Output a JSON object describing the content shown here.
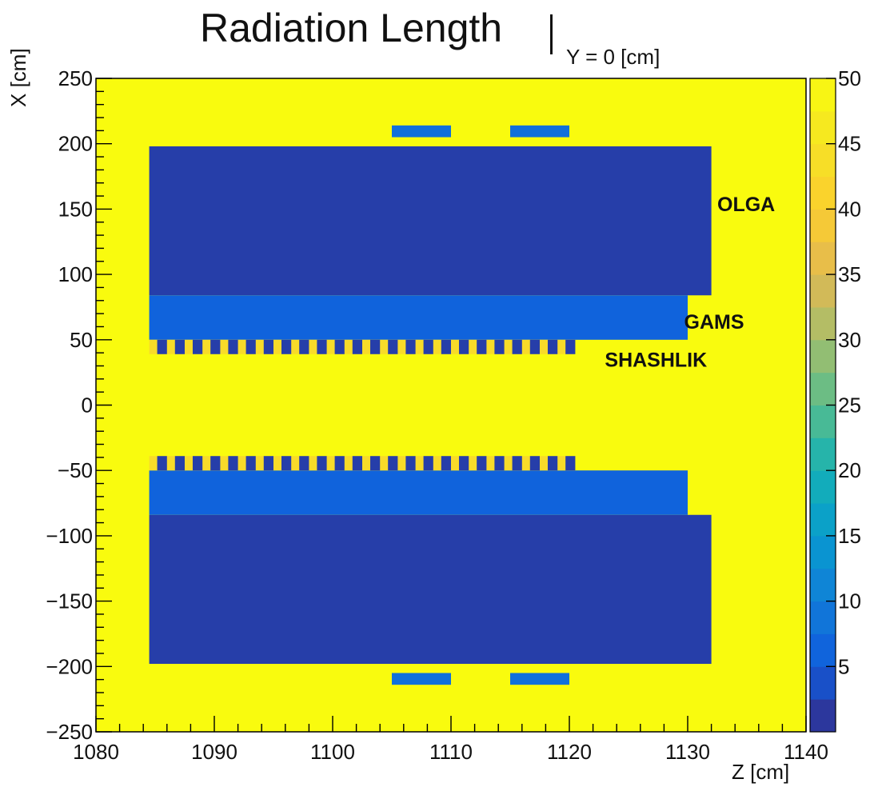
{
  "chart_data": {
    "type": "heatmap",
    "title": "Radiation Length",
    "title_subscript": "Y = 0 [cm]",
    "xlabel": "Z [cm]",
    "ylabel": "X [cm]",
    "xlim": [
      1080,
      1140
    ],
    "ylim": [
      -250,
      250
    ],
    "x_ticks": [
      1080,
      1090,
      1100,
      1110,
      1120,
      1130,
      1140
    ],
    "y_ticks": [
      250,
      200,
      150,
      100,
      50,
      0,
      -50,
      -100,
      -150,
      -200,
      -250
    ],
    "y_tick_labels": [
      "250",
      "200",
      "150",
      "100",
      "50",
      "0",
      "−50",
      "−100",
      "−150",
      "−200",
      "−250"
    ],
    "background_value": 50,
    "colorbar": {
      "range": [
        0,
        50
      ],
      "ticks": [
        5,
        10,
        15,
        20,
        25,
        30,
        35,
        40,
        45,
        50
      ]
    },
    "regions": [
      {
        "label": "OLGA",
        "z": [
          1084.5,
          1132
        ],
        "x": [
          84,
          198
        ],
        "value": 2
      },
      {
        "label": "OLGA",
        "z": [
          1084.5,
          1132
        ],
        "x": [
          -198,
          -84
        ],
        "value": 2
      },
      {
        "label": "GAMS",
        "z": [
          1084.5,
          1130
        ],
        "x": [
          50,
          84
        ],
        "value": 6
      },
      {
        "label": "GAMS",
        "z": [
          1084.5,
          1130
        ],
        "x": [
          -84,
          -50
        ],
        "value": 6
      },
      {
        "label": "",
        "z": [
          1105,
          1110
        ],
        "x": [
          205,
          214
        ],
        "value": 8
      },
      {
        "label": "",
        "z": [
          1115,
          1120
        ],
        "x": [
          205,
          214
        ],
        "value": 8
      },
      {
        "label": "",
        "z": [
          1105,
          1110
        ],
        "x": [
          -214,
          -205
        ],
        "value": 8
      },
      {
        "label": "",
        "z": [
          1115,
          1120
        ],
        "x": [
          -214,
          -205
        ],
        "value": 8
      }
    ],
    "shashlik": {
      "label": "SHASHLIK",
      "z_range": [
        1084.5,
        1120.5
      ],
      "x_bands": [
        [
          39,
          50
        ],
        [
          -50,
          -39
        ]
      ],
      "module_count": 24,
      "high_value": 43,
      "low_value": 2
    },
    "annotations": [
      {
        "text": "OLGA",
        "z": 1132.5,
        "x": 154
      },
      {
        "text": "GAMS",
        "z": 1129.7,
        "x": 64
      },
      {
        "text": "SHASHLIK",
        "z": 1123,
        "x": 35
      }
    ],
    "grid": false
  }
}
